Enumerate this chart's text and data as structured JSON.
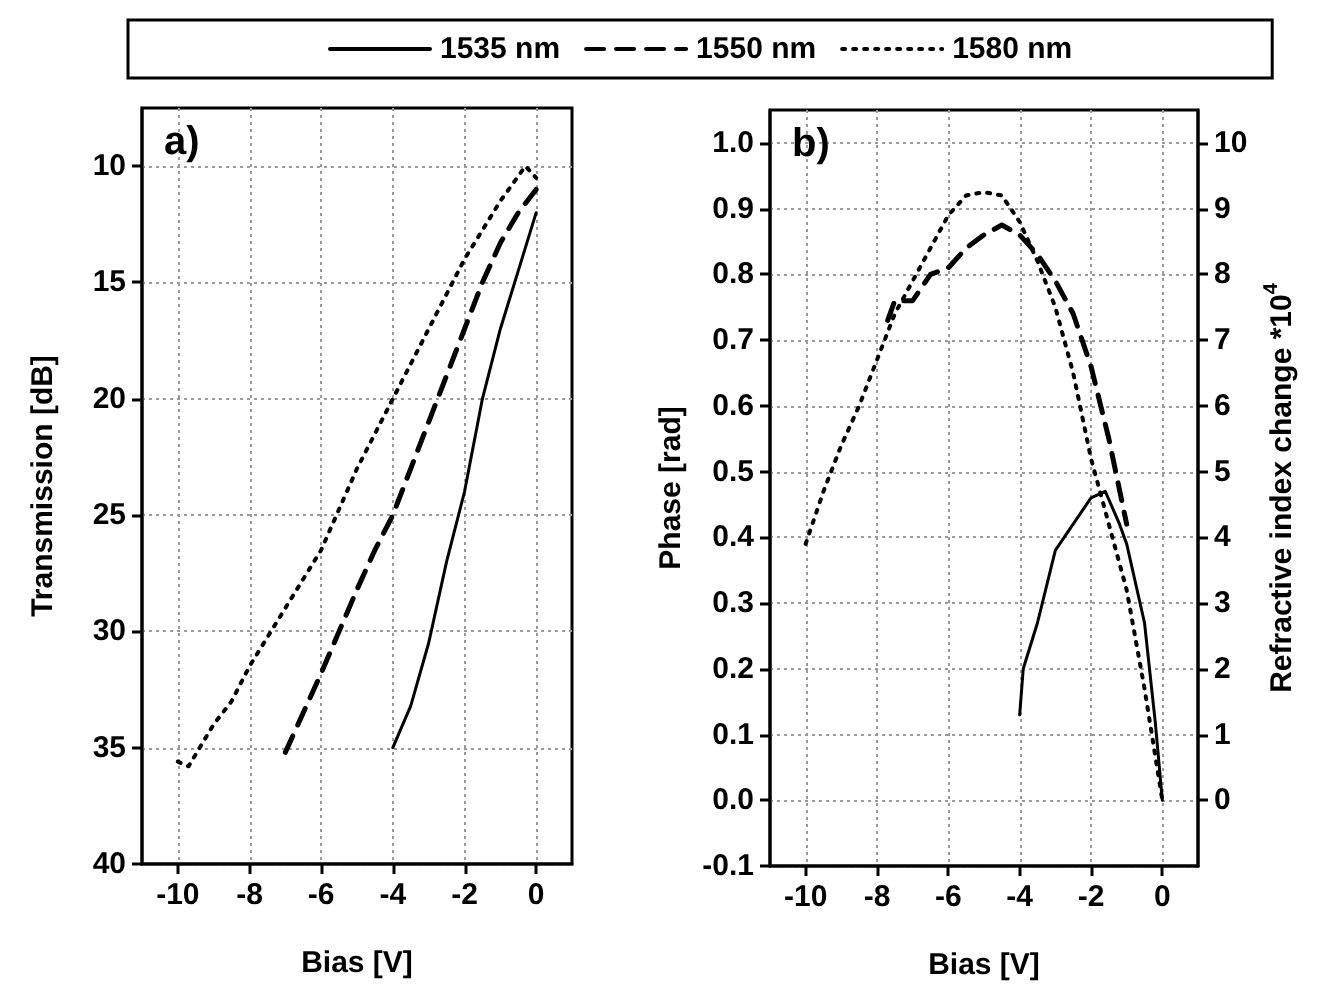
{
  "chart_data": [
    {
      "type": "line",
      "title": "a)",
      "xlabel": "Bias [V]",
      "ylabel": "Transmission [dB]",
      "legend": "top",
      "grid": true,
      "marker": "none",
      "xlim": [
        -11,
        1
      ],
      "xticks": [
        -10,
        -8,
        -6,
        -4,
        -2,
        0
      ],
      "ylim": [
        40,
        7.5
      ],
      "yticks": [
        10,
        15,
        20,
        25,
        30,
        35,
        40
      ],
      "series": [
        {
          "name": "1535 nm",
          "color": "#000000",
          "line_style": "solid",
          "x": [
            -4,
            -3.5,
            -3,
            -2.5,
            -2,
            -1.5,
            -1,
            -0.5,
            0
          ],
          "values": [
            35,
            33.2,
            30.5,
            27,
            24,
            20,
            17,
            14.5,
            12
          ]
        },
        {
          "name": "1550 nm",
          "color": "#000000",
          "line_style": "dashed",
          "x": [
            -7,
            -6.5,
            -6,
            -5.5,
            -5,
            -4.5,
            -4,
            -3.5,
            -3,
            -2.5,
            -2,
            -1.5,
            -1,
            -0.5,
            0
          ],
          "values": [
            35.2,
            33.5,
            31.8,
            30,
            28.2,
            26.5,
            25,
            23,
            21,
            19,
            17,
            15,
            13.3,
            12,
            11
          ]
        },
        {
          "name": "1580 nm",
          "color": "#000000",
          "line_style": "dotted",
          "x": [
            -10,
            -9.7,
            -9,
            -8.5,
            -8,
            -7,
            -6,
            -5,
            -4,
            -3,
            -2,
            -1,
            -0.3,
            0
          ],
          "values": [
            35.6,
            35.8,
            34,
            33,
            31.5,
            29,
            26.5,
            23,
            20,
            17,
            14,
            11.5,
            10,
            10.5
          ]
        }
      ]
    },
    {
      "type": "line",
      "title": "b)",
      "xlabel": "Bias [V]",
      "ylabel": "Phase [rad]",
      "y2label": "Refractive index change *10$^{4}$",
      "legend": "top",
      "grid": true,
      "marker": "none",
      "xlim": [
        -11,
        1
      ],
      "xticks": [
        -10,
        -8,
        -6,
        -4,
        -2,
        0
      ],
      "ylim": [
        -0.1,
        1.05
      ],
      "yticks": [
        -0.1,
        {
          "value": 0,
          "label": "0.0"
        },
        0.1,
        0.2,
        0.3,
        0.4,
        0.5,
        0.6,
        0.7,
        0.8,
        0.9,
        {
          "value": 1,
          "label": "1.0"
        }
      ],
      "y2lim": [
        -1,
        10.5
      ],
      "y2ticks": [
        0,
        1,
        2,
        3,
        4,
        5,
        6,
        7,
        8,
        9,
        10
      ],
      "series": [
        {
          "name": "1535 nm",
          "color": "#000000",
          "line_style": "solid",
          "x": [
            -4,
            -3.9,
            -3.5,
            -3,
            -2.5,
            -2,
            -1.6,
            -1.2,
            -1,
            -0.5,
            -0.2,
            0
          ],
          "values": [
            0.13,
            0.2,
            0.27,
            0.38,
            0.42,
            0.46,
            0.47,
            0.42,
            0.39,
            0.27,
            0.12,
            0
          ]
        },
        {
          "name": "1550 nm",
          "color": "#000000",
          "line_style": "dashed",
          "x": [
            -7.7,
            -7.5,
            -7,
            -6.5,
            -6,
            -5.5,
            -5,
            -4.5,
            -4,
            -3.5,
            -3,
            -2.5,
            -2,
            -1.5,
            -1
          ],
          "values": [
            0.73,
            0.76,
            0.76,
            0.8,
            0.81,
            0.84,
            0.86,
            0.875,
            0.86,
            0.83,
            0.79,
            0.74,
            0.66,
            0.55,
            0.42
          ]
        },
        {
          "name": "1580 nm",
          "color": "#000000",
          "line_style": "dotted",
          "x": [
            -10,
            -9.5,
            -9,
            -8.5,
            -8,
            -7.5,
            -7,
            -6.5,
            -6,
            -5.5,
            -5,
            -4.5,
            -4,
            -3.5,
            -3,
            -2.5,
            -2,
            -1.5,
            -1,
            -0.5,
            0
          ],
          "values": [
            0.39,
            0.47,
            0.54,
            0.6,
            0.67,
            0.74,
            0.79,
            0.84,
            0.89,
            0.92,
            0.925,
            0.92,
            0.88,
            0.82,
            0.75,
            0.65,
            0.52,
            0.42,
            0.32,
            0.17,
            0
          ]
        }
      ]
    }
  ]
}
